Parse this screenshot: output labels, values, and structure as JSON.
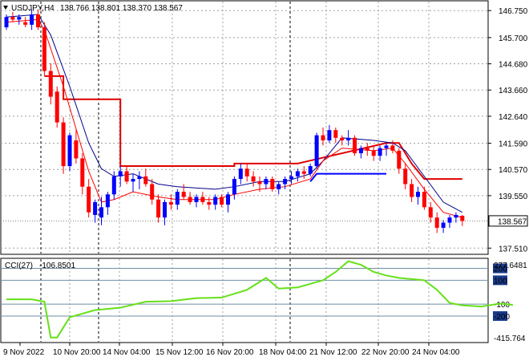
{
  "header": {
    "symbol": "USDJPY,H4",
    "ohlc": "138.766 138.801 138.370 138.567"
  },
  "indicator": {
    "name": "CCI(27)",
    "value": "-106.8501",
    "max_label": "277.6481",
    "min_label": "-415.764",
    "levels": [
      {
        "label": "200",
        "value": 200,
        "boxed": true
      },
      {
        "label": "100",
        "value": 100,
        "boxed": true
      },
      {
        "label": "-100",
        "value": -100,
        "boxed": false
      },
      {
        "label": "-200",
        "value": -200,
        "boxed": true
      }
    ]
  },
  "current_price": "138.567",
  "colors": {
    "bull": "#0000ff",
    "bear": "#ff0000",
    "ma_dark": "#00008b",
    "ma_red": "#ff0000",
    "stop_red": "#e00000",
    "stop_blue": "#0000ff",
    "cci_line": "#66e01a",
    "level_line": "#6f8fa8",
    "grid": "#a0a0a0",
    "vline": "#000000"
  },
  "chart_data": {
    "type": "candlestick",
    "price_axis": {
      "ticks": [
        "146.750",
        "145.700",
        "144.680",
        "143.660",
        "142.640",
        "141.590",
        "140.570",
        "139.550",
        "137.510"
      ],
      "ylim": [
        137.3,
        147.1
      ]
    },
    "time_axis": {
      "labels": [
        "9 Nov 2022",
        "10 Nov 20:00",
        "14 Nov 04:00",
        "15 Nov 12:00",
        "16 Nov 20:00",
        "18 Nov 04:00",
        "21 Nov 12:00",
        "22 Nov 20:00",
        "24 Nov 04:00"
      ]
    },
    "candles": [
      [
        146.1,
        146.6,
        146.0,
        146.5
      ],
      [
        146.5,
        146.7,
        146.3,
        146.4
      ],
      [
        146.4,
        146.6,
        146.2,
        146.5
      ],
      [
        146.3,
        146.5,
        146.1,
        146.2
      ],
      [
        146.2,
        146.8,
        146.0,
        146.6
      ],
      [
        146.6,
        146.8,
        146.0,
        146.1
      ],
      [
        146.1,
        146.3,
        144.2,
        144.4
      ],
      [
        144.4,
        144.7,
        143.1,
        143.4
      ],
      [
        143.6,
        143.8,
        142.2,
        142.4
      ],
      [
        142.4,
        142.6,
        140.4,
        140.7
      ],
      [
        140.7,
        142.0,
        140.5,
        141.9
      ],
      [
        141.7,
        142.1,
        140.8,
        141.0
      ],
      [
        141.0,
        141.2,
        139.6,
        139.9
      ],
      [
        139.9,
        140.2,
        138.7,
        138.9
      ],
      [
        138.8,
        139.4,
        138.5,
        139.3
      ],
      [
        138.7,
        139.5,
        138.4,
        139.1
      ],
      [
        139.1,
        139.7,
        138.8,
        139.6
      ],
      [
        139.6,
        140.5,
        139.4,
        140.3
      ],
      [
        140.3,
        140.7,
        139.9,
        140.5
      ],
      [
        140.5,
        140.7,
        140.0,
        140.1
      ],
      [
        140.1,
        140.4,
        139.7,
        140.2
      ],
      [
        140.2,
        140.5,
        139.8,
        140.3
      ],
      [
        140.3,
        140.6,
        139.9,
        140.0
      ],
      [
        140.0,
        140.2,
        139.2,
        139.4
      ],
      [
        139.4,
        139.6,
        138.5,
        138.7
      ],
      [
        138.7,
        139.4,
        138.4,
        139.3
      ],
      [
        139.3,
        139.6,
        139.0,
        139.2
      ],
      [
        139.2,
        139.8,
        139.0,
        139.7
      ],
      [
        139.7,
        140.0,
        139.4,
        139.5
      ],
      [
        139.5,
        139.7,
        139.2,
        139.3
      ],
      [
        139.3,
        139.6,
        139.1,
        139.5
      ],
      [
        139.5,
        139.7,
        139.2,
        139.3
      ],
      [
        139.3,
        139.5,
        139.0,
        139.2
      ],
      [
        139.2,
        139.6,
        139.0,
        139.5
      ],
      [
        139.5,
        139.6,
        139.1,
        139.2
      ],
      [
        139.2,
        139.7,
        138.9,
        139.6
      ],
      [
        139.6,
        140.3,
        139.4,
        140.2
      ],
      [
        140.2,
        140.8,
        140.0,
        140.6
      ],
      [
        140.6,
        140.8,
        140.1,
        140.3
      ],
      [
        140.3,
        140.5,
        139.9,
        140.1
      ],
      [
        140.1,
        140.3,
        139.7,
        140.0
      ],
      [
        140.0,
        140.3,
        139.8,
        140.2
      ],
      [
        140.2,
        140.3,
        139.7,
        139.8
      ],
      [
        139.8,
        140.1,
        139.6,
        140.0
      ],
      [
        140.0,
        140.3,
        139.8,
        140.2
      ],
      [
        140.2,
        140.5,
        140.0,
        140.3
      ],
      [
        140.3,
        140.6,
        140.1,
        140.5
      ],
      [
        140.5,
        140.7,
        140.2,
        140.4
      ],
      [
        140.4,
        140.8,
        140.3,
        140.7
      ],
      [
        140.7,
        142.0,
        140.6,
        141.9
      ],
      [
        141.9,
        142.2,
        141.5,
        141.7
      ],
      [
        141.7,
        142.3,
        141.6,
        142.1
      ],
      [
        142.1,
        142.2,
        141.6,
        141.8
      ],
      [
        141.8,
        141.9,
        141.5,
        141.7
      ],
      [
        141.7,
        142.1,
        141.5,
        141.8
      ],
      [
        141.8,
        141.9,
        141.1,
        141.2
      ],
      [
        141.2,
        141.5,
        141.0,
        141.4
      ],
      [
        141.4,
        141.6,
        141.1,
        141.3
      ],
      [
        141.3,
        141.5,
        140.9,
        141.1
      ],
      [
        141.1,
        141.5,
        140.9,
        141.4
      ],
      [
        141.4,
        141.6,
        141.1,
        141.5
      ],
      [
        141.5,
        141.7,
        141.2,
        141.3
      ],
      [
        141.3,
        141.4,
        140.4,
        140.6
      ],
      [
        140.6,
        140.8,
        139.8,
        140.0
      ],
      [
        140.0,
        140.2,
        139.3,
        139.5
      ],
      [
        139.5,
        139.9,
        139.2,
        139.7
      ],
      [
        139.7,
        139.9,
        139.0,
        139.1
      ],
      [
        139.1,
        139.3,
        138.5,
        138.7
      ],
      [
        138.7,
        138.9,
        138.1,
        138.3
      ],
      [
        138.3,
        138.6,
        138.1,
        138.5
      ],
      [
        138.5,
        138.8,
        138.3,
        138.7
      ],
      [
        138.7,
        138.9,
        138.5,
        138.8
      ],
      [
        138.766,
        138.801,
        138.37,
        138.567
      ]
    ],
    "ma_fast": [
      [
        0,
        146.3
      ],
      [
        5,
        146.4
      ],
      [
        6,
        146.0
      ],
      [
        9,
        143.8
      ],
      [
        13,
        140.5
      ],
      [
        15,
        139.3
      ],
      [
        17,
        139.4
      ],
      [
        20,
        139.7
      ],
      [
        24,
        139.5
      ],
      [
        27,
        139.4
      ],
      [
        33,
        139.4
      ],
      [
        36,
        139.6
      ],
      [
        40,
        139.8
      ],
      [
        44,
        139.9
      ],
      [
        48,
        140.2
      ],
      [
        50,
        140.9
      ],
      [
        53,
        141.4
      ],
      [
        58,
        141.3
      ],
      [
        61,
        141.4
      ],
      [
        63,
        140.8
      ],
      [
        66,
        139.8
      ],
      [
        69,
        138.9
      ],
      [
        72,
        138.7
      ]
    ],
    "ma_slow": [
      [
        0,
        146.5
      ],
      [
        5,
        146.6
      ],
      [
        7,
        145.8
      ],
      [
        10,
        143.8
      ],
      [
        13,
        141.6
      ],
      [
        15,
        140.6
      ],
      [
        17,
        140.3
      ],
      [
        20,
        140.4
      ],
      [
        24,
        140.0
      ],
      [
        27,
        139.9
      ],
      [
        33,
        139.8
      ],
      [
        36,
        139.9
      ],
      [
        40,
        140.1
      ],
      [
        44,
        140.1
      ],
      [
        48,
        140.4
      ],
      [
        50,
        140.9
      ],
      [
        53,
        141.8
      ],
      [
        58,
        141.7
      ],
      [
        61,
        141.6
      ],
      [
        63,
        141.3
      ],
      [
        66,
        140.3
      ],
      [
        69,
        139.3
      ],
      [
        72,
        138.9
      ]
    ],
    "stop_red": [
      [
        6,
        144.2
      ],
      [
        9,
        144.2
      ],
      [
        9,
        143.3
      ],
      [
        18,
        143.3
      ],
      [
        18,
        140.7
      ],
      [
        36,
        140.7
      ],
      [
        36,
        140.8
      ],
      [
        46,
        140.8
      ],
      [
        60,
        141.6
      ],
      [
        62,
        141.6
      ],
      [
        64,
        140.8
      ],
      [
        66,
        140.2
      ],
      [
        72,
        140.2
      ]
    ],
    "stop_blue": [
      [
        48,
        140.1
      ],
      [
        49,
        140.4
      ],
      [
        60,
        140.4
      ]
    ],
    "cci": [
      [
        0,
        -60
      ],
      [
        4,
        -60
      ],
      [
        6,
        -80
      ],
      [
        7,
        -380
      ],
      [
        8,
        -380
      ],
      [
        10,
        -210
      ],
      [
        14,
        -150
      ],
      [
        18,
        -130
      ],
      [
        22,
        -80
      ],
      [
        26,
        -75
      ],
      [
        30,
        -50
      ],
      [
        34,
        -45
      ],
      [
        38,
        20
      ],
      [
        41,
        120
      ],
      [
        43,
        30
      ],
      [
        46,
        40
      ],
      [
        48,
        70
      ],
      [
        50,
        100
      ],
      [
        52,
        170
      ],
      [
        54,
        260
      ],
      [
        56,
        230
      ],
      [
        58,
        170
      ],
      [
        60,
        140
      ],
      [
        62,
        120
      ],
      [
        64,
        110
      ],
      [
        66,
        100
      ],
      [
        68,
        20
      ],
      [
        70,
        -90
      ],
      [
        72,
        -110
      ],
      [
        75,
        -120
      ],
      [
        78,
        -95
      ],
      [
        80,
        -107
      ]
    ]
  }
}
